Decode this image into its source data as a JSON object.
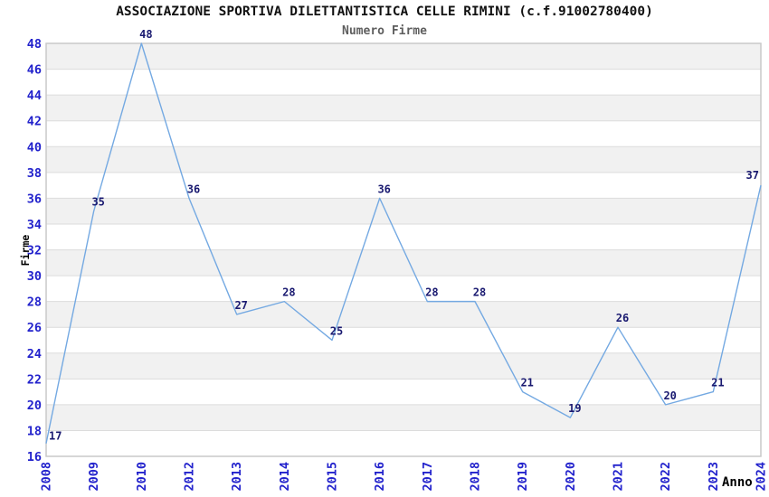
{
  "chart_data": {
    "type": "line",
    "title": "ASSOCIAZIONE SPORTIVA DILETTANTISTICA CELLE RIMINI (c.f.91002780400)",
    "subtitle": "Numero Firme",
    "xlabel": "Anno",
    "ylabel": "Firme",
    "categories": [
      "2008",
      "2009",
      "2010",
      "2012",
      "2013",
      "2014",
      "2015",
      "2016",
      "2017",
      "2018",
      "2019",
      "2020",
      "2021",
      "2022",
      "2023",
      "2024"
    ],
    "values": [
      17,
      35,
      48,
      36,
      27,
      28,
      25,
      36,
      28,
      28,
      21,
      19,
      26,
      20,
      21,
      37
    ],
    "y_ticks": [
      16,
      18,
      20,
      22,
      24,
      26,
      28,
      30,
      32,
      34,
      36,
      38,
      40,
      42,
      44,
      46,
      48
    ],
    "ylim": [
      16,
      48
    ],
    "ytick_step": 2,
    "grid": "horizontal-bands-alternating",
    "legend": "none",
    "x_tick_rotation": -90,
    "colors": {
      "line": "#74a9e2",
      "value_label": "#191970",
      "tick_label": "#2222cc",
      "band_gray": "#f1f1f1",
      "band_white": "#ffffff",
      "grid_line": "#dcdcdc",
      "plot_border": "#c9c9c9",
      "title": "#111111",
      "subtitle": "#5e5e5e",
      "axis_title": "#000000",
      "background": "#ffffff"
    }
  }
}
